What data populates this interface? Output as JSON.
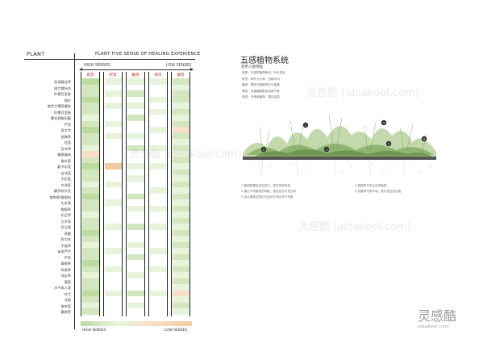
{
  "left": {
    "plant_label": "PLANT",
    "chart_title": "PLANT FIVE SENSE OF HEALING EXPERIENCE",
    "high_top": "HIGH SENSES",
    "low_top": "LOW SENSES",
    "high_bottom": "HIGH SENSES",
    "low_bottom": "LOW SENSES",
    "senses": [
      "视觉",
      "听觉",
      "触觉",
      "味觉",
      "嗅觉"
    ],
    "plants": [
      "弦语藤丝草",
      "绒兰穗叶花",
      "柠檬百里香",
      "银杉",
      "紫罗兰薄荷缠枝",
      "柠檬百里香",
      "薰衣洞紫阳藤",
      "芦苇",
      "雨大竹",
      "鼠麴草",
      "红蓝",
      "百叶草",
      "蠟黄貓絲",
      "猫针菊",
      "颠书水莲",
      "白冰蓝",
      "大拓蓝",
      "鸟池茎",
      "麟罗软尺花",
      "紫荆骨/猫眼科",
      "头东菊",
      "猫眼草",
      "利日萍",
      "万岁菊",
      "百日菊",
      "燕窠",
      "两刀花",
      "干鼓草",
      "迷迭芦竹",
      "芦苇",
      "毒眼草",
      "鸡尾草",
      "地尖草",
      "葡萄",
      "水牛高人莲",
      "铃兰",
      "冰菊",
      "香茶菜",
      "墨野草"
    ],
    "colors": {
      "green_light": "#e8f3dc",
      "green_mid": "#d2e7bd",
      "green_dark": "#bcdba0",
      "orange": "#f3c9a0",
      "orange_light": "#f8dec4",
      "line": "#222222"
    }
  },
  "right": {
    "title": "五感植物系统",
    "subtitle": "使用人群特點",
    "legend": [
      "视觉：丰富的植物色彩，叶形变化",
      "听觉：树叶沙沙声，虫鸣鸟叫",
      "触觉：柔软与粗糙的叶片触感",
      "嗅觉：芳香植物散发自然气味",
      "味觉：可食用植物，果实品尝"
    ],
    "markers": [
      "1",
      "2",
      "3",
      "4",
      "5",
      "6"
    ],
    "notes_left": [
      "1.植物配置形成多层次，提升感官刺激",
      "2.通过不同植物的种植，营造自然疗愈空间",
      "3.结合康复花园的五感设计理念进行布置"
    ],
    "notes_right": [
      "4.根据季节变化选择植物",
      "5.改善微气候环境，提升居住舒适度"
    ]
  },
  "brand": {
    "logo": "灵感酷",
    "url": "ideakool.com",
    "watermark": "灵感酷 (ideakool.com)"
  }
}
